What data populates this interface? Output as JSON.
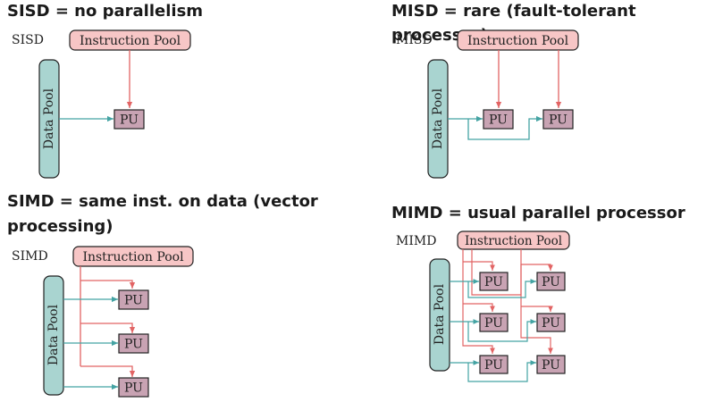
{
  "colors": {
    "instruction_fill": "#f7c6c6",
    "instruction_stroke": "#d05a5a",
    "data_fill": "#a9d4d0",
    "data_stroke": "#333333",
    "pu_fill": "#c8a3b3",
    "pu_stroke": "#222222",
    "instruction_arrow": "#e26464",
    "data_arrow": "#44a3a3"
  },
  "sisd": {
    "heading": "SISD = no parallelism",
    "tag": "SISD",
    "instruction_pool": "Instruction Pool",
    "data_pool": "Data Pool",
    "pu": "PU"
  },
  "misd": {
    "heading": "MISD = rare (fault-tolerant processor)",
    "tag": "MISD",
    "instruction_pool": "Instruction Pool",
    "data_pool": "Data Pool",
    "pu": "PU"
  },
  "simd": {
    "heading_line1": "SIMD = same inst. on data (vector",
    "heading_line2": "processing)",
    "tag": "SIMD",
    "instruction_pool": "Instruction Pool",
    "data_pool": "Data Pool",
    "pu": "PU"
  },
  "mimd": {
    "heading": "MIMD = usual parallel processor",
    "tag": "MIMD",
    "instruction_pool": "Instruction Pool",
    "data_pool": "Data Pool",
    "pu": "PU"
  }
}
